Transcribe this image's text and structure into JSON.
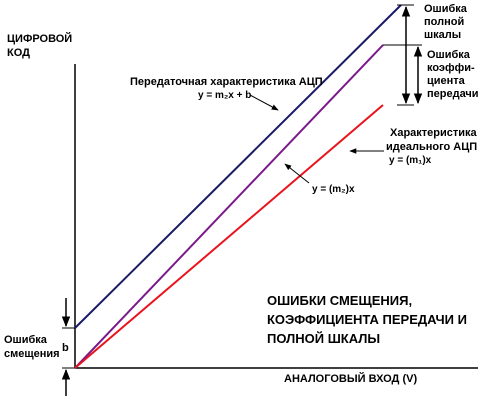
{
  "axes": {
    "y_label": [
      "ЦИФРОВОЙ",
      "КОД"
    ],
    "x_label": "АНАЛОГОВЫЙ ВХОД (V)"
  },
  "labels": {
    "transfer_title": "Передаточная характеристика АЦП",
    "transfer_formula": "y = m₂x + b",
    "m2x_formula": "y = (m₂)x",
    "ideal_title": [
      "Характеристика",
      "идеального АЦП"
    ],
    "ideal_formula": "y = (m₁)x",
    "fullscale_error": [
      "Ошибка",
      "полной",
      "шкалы"
    ],
    "gain_error": [
      "Ошибка",
      "коэффи-",
      "циента",
      "передачи"
    ],
    "offset_error": [
      "Ошибка",
      "смещения"
    ],
    "offset_symbol": "b"
  },
  "title_block": [
    "ОШИБКИ  СМЕЩЕНИЯ,",
    "КОЭФФИЦИЕНТА  ПЕРЕДАЧИ И",
    "ПОЛНОЙ ШКАЛЫ"
  ],
  "colors": {
    "actual_line": "#1a1a66",
    "m2x_line": "#7a1a8a",
    "ideal_line": "#e8141e",
    "axis": "#000000"
  }
}
